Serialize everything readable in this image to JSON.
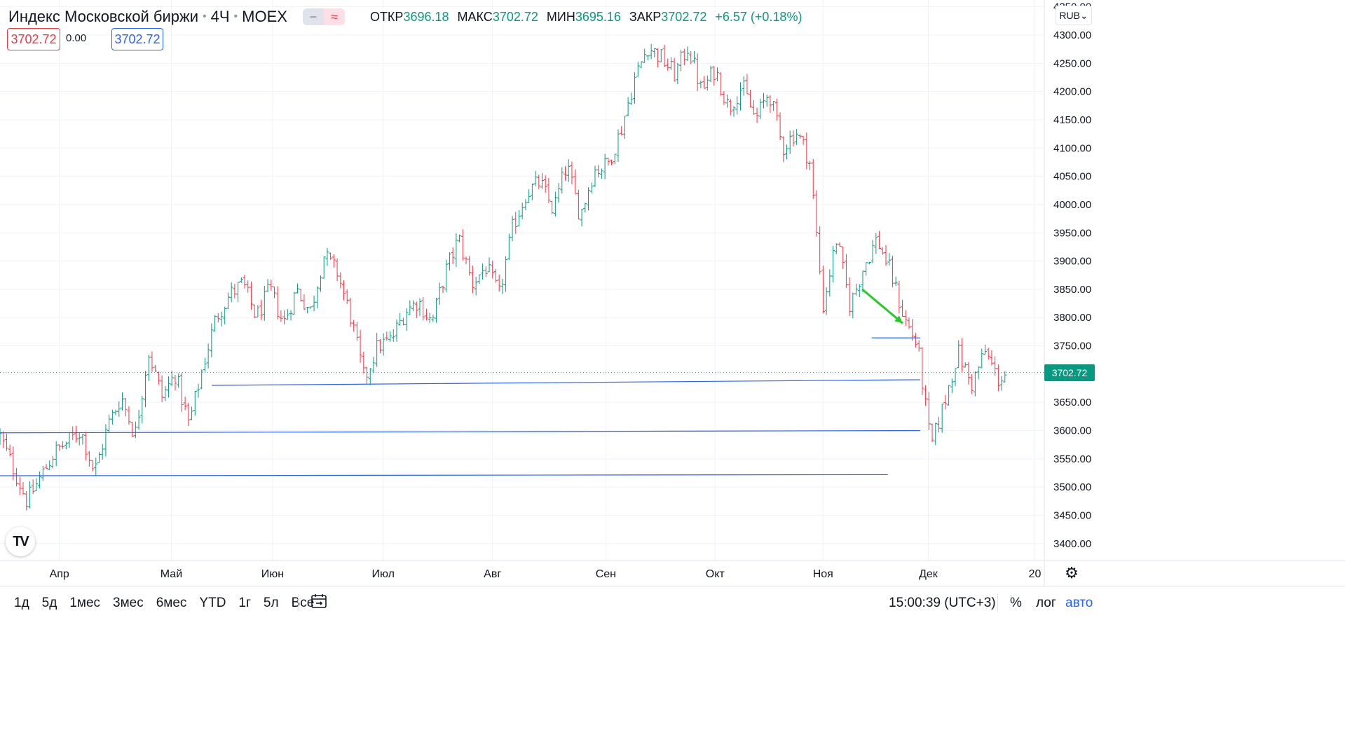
{
  "header": {
    "title": "Индекс Московской биржи",
    "interval": "4Ч",
    "exchange": "MOEX",
    "toggle_a": "−",
    "toggle_b": "≈",
    "open_label": "ОТКР",
    "open_value": "3696.18",
    "high_label": "МАКС",
    "high_value": "3702.72",
    "low_label": "МИН",
    "low_value": "3695.16",
    "close_label": "ЗАКР",
    "close_value": "3702.72",
    "change": "+6.57 (+0.18%)"
  },
  "trade": {
    "sell_price": "3702.72",
    "spread": "0.00",
    "buy_price": "3702.72"
  },
  "currency": {
    "label": "RUB",
    "chevron": "⌄"
  },
  "last_price_label": "3702.72",
  "bottom": {
    "ranges": [
      "1д",
      "5д",
      "1мес",
      "3мес",
      "6мес",
      "YTD",
      "1г",
      "5л",
      "Все"
    ],
    "time": "15:00:39 (UTC+3)",
    "percent": "%",
    "log": "лог",
    "auto": "авто"
  },
  "icons": {
    "logo": "tradingview-logo",
    "settings": "gear-icon",
    "calendar": "calendar-range-icon"
  },
  "chart_data": {
    "type": "bar",
    "subtype": "ohlc",
    "y_ticks": [
      3400,
      3450,
      3500,
      3550,
      3600,
      3650,
      3700,
      3750,
      3800,
      3850,
      3900,
      3950,
      4000,
      4050,
      4100,
      4150,
      4200,
      4250,
      4300,
      4350
    ],
    "x_ticks": [
      "Апр",
      "Май",
      "Июн",
      "Июл",
      "Авг",
      "Сен",
      "Окт",
      "Ноя",
      "Дек",
      "20"
    ],
    "ylim": [
      3370,
      4362
    ],
    "grid": true,
    "colors": {
      "up": "#089981",
      "down": "#f23645",
      "lines": "#2962ff",
      "arrow": "#22cc22"
    },
    "close_path": [
      [
        0,
        3590
      ],
      [
        2,
        3475
      ],
      [
        4,
        3560
      ],
      [
        6,
        3600
      ],
      [
        7,
        3525
      ],
      [
        8,
        3610
      ],
      [
        9,
        3660
      ],
      [
        10,
        3590
      ],
      [
        11,
        3740
      ],
      [
        12,
        3660
      ],
      [
        13,
        3700
      ],
      [
        14,
        3610
      ],
      [
        15,
        3710
      ],
      [
        16,
        3800
      ],
      [
        17,
        3840
      ],
      [
        18,
        3860
      ],
      [
        19,
        3800
      ],
      [
        20,
        3850
      ],
      [
        21,
        3790
      ],
      [
        22,
        3850
      ],
      [
        23,
        3810
      ],
      [
        24,
        3910
      ],
      [
        25,
        3880
      ],
      [
        26,
        3800
      ],
      [
        27,
        3690
      ],
      [
        28,
        3750
      ],
      [
        29,
        3760
      ],
      [
        30,
        3810
      ],
      [
        31,
        3830
      ],
      [
        32,
        3790
      ],
      [
        33,
        3880
      ],
      [
        34,
        3940
      ],
      [
        35,
        3860
      ],
      [
        36,
        3890
      ],
      [
        37,
        3840
      ],
      [
        38,
        3960
      ],
      [
        39,
        4020
      ],
      [
        40,
        4040
      ],
      [
        41,
        3990
      ],
      [
        42,
        4070
      ],
      [
        43,
        3980
      ],
      [
        44,
        4060
      ],
      [
        45,
        4070
      ],
      [
        46,
        4130
      ],
      [
        47,
        4220
      ],
      [
        48,
        4280
      ],
      [
        49,
        4260
      ],
      [
        50,
        4230
      ],
      [
        51,
        4280
      ],
      [
        52,
        4200
      ],
      [
        53,
        4240
      ],
      [
        54,
        4170
      ],
      [
        55,
        4210
      ],
      [
        56,
        4150
      ],
      [
        57,
        4200
      ],
      [
        58,
        4100
      ],
      [
        59,
        4130
      ],
      [
        60,
        4080
      ],
      [
        61,
        3820
      ],
      [
        62,
        3940
      ],
      [
        63,
        3820
      ],
      [
        64,
        3890
      ],
      [
        65,
        3940
      ],
      [
        66,
        3880
      ],
      [
        67,
        3800
      ],
      [
        68,
        3750
      ],
      [
        69,
        3570
      ],
      [
        70,
        3650
      ],
      [
        71,
        3740
      ],
      [
        72,
        3680
      ],
      [
        73,
        3740
      ],
      [
        74,
        3690
      ],
      [
        74.7,
        3702.72
      ]
    ],
    "horizontal_lines": [
      {
        "from": [
          15.7,
          3680
        ],
        "to": [
          68.2,
          3690
        ]
      },
      {
        "from": [
          0,
          3596
        ],
        "to": [
          68.2,
          3600
        ]
      },
      {
        "from": [
          0,
          3520
        ],
        "to": [
          65.8,
          3522
        ]
      },
      {
        "from": [
          64.6,
          3764
        ],
        "to": [
          68.2,
          3764
        ]
      }
    ],
    "arrow": {
      "from": [
        63.9,
        3850
      ],
      "to": [
        66.9,
        3790
      ]
    },
    "last_price": 3702.72
  }
}
